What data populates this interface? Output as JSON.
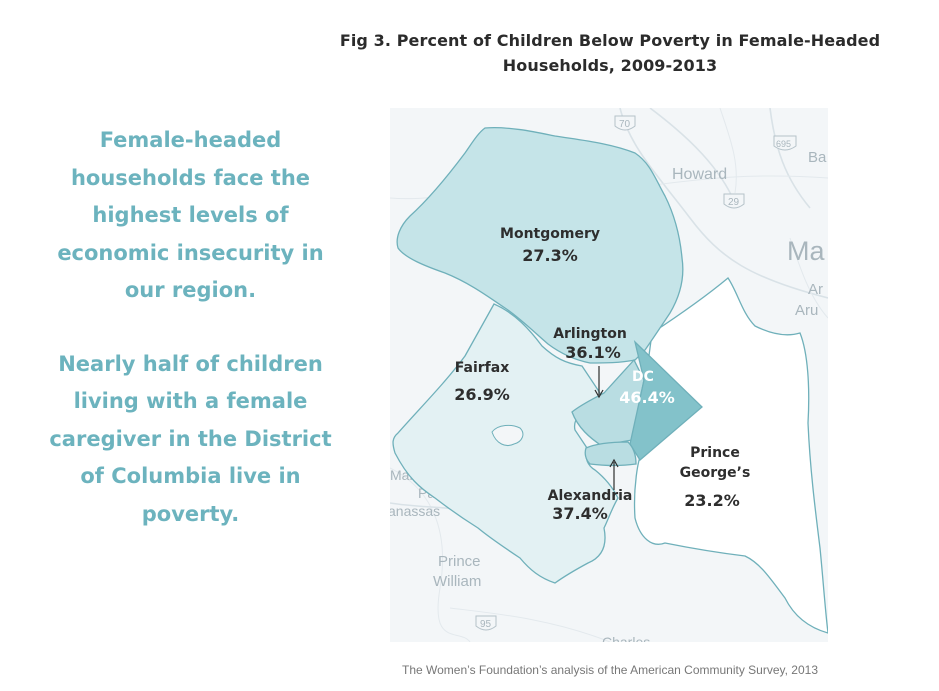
{
  "title": {
    "line1": "Fig 3. Percent of Children Below Poverty in Female-Headed",
    "line2": "Households, 2009-2013"
  },
  "callout": {
    "paragraph1": "Female-headed households face the highest levels of economic insecurity in our region.",
    "paragraph2": "Nearly half of children living with a female caregiver in the District of Columbia live in poverty."
  },
  "source": "The Women’s Foundation’s analysis of the American Community Survey, 2013",
  "basemap_labels": {
    "howard": "Howard",
    "ma": "Ma",
    "ar": "Ar",
    "aru": "Aru",
    "ba": "Ba",
    "manas": "Manas",
    "park": "Park",
    "anassas": "anassas",
    "prince": "Prince",
    "william": "William",
    "charles": "Charles",
    "shield_70": "70",
    "shield_695": "695",
    "shield_29": "29",
    "shield_95": "95"
  },
  "colors": {
    "light": "#e3f1f3",
    "medium": "#c5e4e8",
    "medium2": "#b9dde2",
    "dark": "#83c2ca",
    "border": "#6fb0ba",
    "callout_text": "#6cb3be"
  },
  "chart_data": {
    "type": "choropleth",
    "title": "Fig 3. Percent of Children Below Poverty in Female-Headed Households, 2009-2013",
    "unit": "%",
    "regions": [
      {
        "name": "Montgomery",
        "value": 27.3,
        "label": "27.3%"
      },
      {
        "name": "Arlington",
        "value": 36.1,
        "label": "36.1%"
      },
      {
        "name": "DC",
        "value": 46.4,
        "label": "46.4%"
      },
      {
        "name": "Fairfax",
        "value": 26.9,
        "label": "26.9%"
      },
      {
        "name": "Prince George’s",
        "value": 23.2,
        "label": "23.2%",
        "name_line1": "Prince",
        "name_line2": "George’s"
      },
      {
        "name": "Alexandria",
        "value": 37.4,
        "label": "37.4%"
      }
    ]
  }
}
